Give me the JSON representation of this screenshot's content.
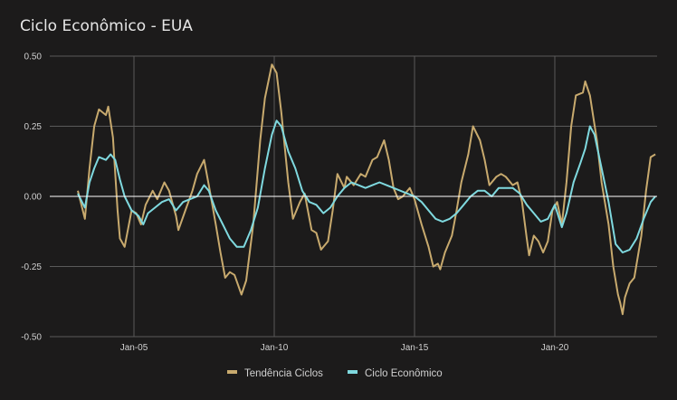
{
  "chart_data": {
    "type": "line",
    "title": "Ciclo Econômico - EUA",
    "xlabel": "",
    "ylabel": "",
    "ylim": [
      -0.5,
      0.5
    ],
    "yticks": [
      "0.50",
      "0.25",
      "0.00",
      "-0.25",
      "-0.50"
    ],
    "ytick_values": [
      0.5,
      0.25,
      0,
      -0.25,
      -0.5
    ],
    "xticks": [
      "Jan-05",
      "Jan-10",
      "Jan-15",
      "Jan-20"
    ],
    "xtick_values": [
      "2005-01",
      "2010-01",
      "2015-01",
      "2020-01"
    ],
    "xlim": [
      "2001-01",
      "2023-08"
    ],
    "grid": true,
    "legend_position": "bottom",
    "series": [
      {
        "name": "Tendência Ciclos",
        "color": "#c8aa6e",
        "points": [
          [
            "2003-01",
            0.02
          ],
          [
            "2003-04",
            -0.08
          ],
          [
            "2003-06",
            0.1
          ],
          [
            "2003-08",
            0.25
          ],
          [
            "2003-10",
            0.31
          ],
          [
            "2004-01",
            0.29
          ],
          [
            "2004-02",
            0.32
          ],
          [
            "2004-04",
            0.21
          ],
          [
            "2004-06",
            -0.05
          ],
          [
            "2004-07",
            -0.15
          ],
          [
            "2004-09",
            -0.18
          ],
          [
            "2004-12",
            -0.05
          ],
          [
            "2005-02",
            -0.06
          ],
          [
            "2005-04",
            -0.1
          ],
          [
            "2005-06",
            -0.03
          ],
          [
            "2005-09",
            0.02
          ],
          [
            "2005-11",
            -0.01
          ],
          [
            "2006-02",
            0.05
          ],
          [
            "2006-04",
            0.02
          ],
          [
            "2006-07",
            -0.07
          ],
          [
            "2006-08",
            -0.12
          ],
          [
            "2006-11",
            -0.05
          ],
          [
            "2007-02",
            0.02
          ],
          [
            "2007-04",
            0.08
          ],
          [
            "2007-07",
            0.13
          ],
          [
            "2007-09",
            0.04
          ],
          [
            "2007-12",
            -0.1
          ],
          [
            "2008-02",
            -0.2
          ],
          [
            "2008-04",
            -0.29
          ],
          [
            "2008-06",
            -0.27
          ],
          [
            "2008-08",
            -0.28
          ],
          [
            "2008-11",
            -0.35
          ],
          [
            "2009-01",
            -0.3
          ],
          [
            "2009-04",
            -0.1
          ],
          [
            "2009-07",
            0.2
          ],
          [
            "2009-09",
            0.35
          ],
          [
            "2009-12",
            0.47
          ],
          [
            "2010-02",
            0.44
          ],
          [
            "2010-04",
            0.3
          ],
          [
            "2010-07",
            0.05
          ],
          [
            "2010-09",
            -0.08
          ],
          [
            "2010-12",
            -0.02
          ],
          [
            "2011-02",
            0.01
          ],
          [
            "2011-05",
            -0.12
          ],
          [
            "2011-07",
            -0.13
          ],
          [
            "2011-09",
            -0.19
          ],
          [
            "2011-12",
            -0.16
          ],
          [
            "2012-02",
            -0.05
          ],
          [
            "2012-04",
            0.08
          ],
          [
            "2012-07",
            0.03
          ],
          [
            "2012-08",
            0.07
          ],
          [
            "2012-11",
            0.04
          ],
          [
            "2013-02",
            0.08
          ],
          [
            "2013-04",
            0.07
          ],
          [
            "2013-07",
            0.13
          ],
          [
            "2013-09",
            0.14
          ],
          [
            "2013-12",
            0.2
          ],
          [
            "2014-02",
            0.13
          ],
          [
            "2014-04",
            0.03
          ],
          [
            "2014-06",
            -0.01
          ],
          [
            "2014-08",
            0.0
          ],
          [
            "2014-11",
            0.03
          ],
          [
            "2015-01",
            -0.01
          ],
          [
            "2015-04",
            -0.1
          ],
          [
            "2015-07",
            -0.18
          ],
          [
            "2015-09",
            -0.25
          ],
          [
            "2015-11",
            -0.24
          ],
          [
            "2015-12",
            -0.26
          ],
          [
            "2016-02",
            -0.2
          ],
          [
            "2016-05",
            -0.14
          ],
          [
            "2016-07",
            -0.05
          ],
          [
            "2016-09",
            0.05
          ],
          [
            "2016-12",
            0.15
          ],
          [
            "2017-02",
            0.25
          ],
          [
            "2017-05",
            0.2
          ],
          [
            "2017-07",
            0.13
          ],
          [
            "2017-09",
            0.04
          ],
          [
            "2017-12",
            0.07
          ],
          [
            "2018-02",
            0.08
          ],
          [
            "2018-04",
            0.07
          ],
          [
            "2018-07",
            0.04
          ],
          [
            "2018-09",
            0.05
          ],
          [
            "2018-11",
            -0.02
          ],
          [
            "2019-01",
            -0.15
          ],
          [
            "2019-02",
            -0.21
          ],
          [
            "2019-04",
            -0.14
          ],
          [
            "2019-06",
            -0.16
          ],
          [
            "2019-08",
            -0.2
          ],
          [
            "2019-10",
            -0.16
          ],
          [
            "2019-12",
            -0.05
          ],
          [
            "2020-02",
            -0.02
          ],
          [
            "2020-04",
            -0.1
          ],
          [
            "2020-06",
            0.05
          ],
          [
            "2020-08",
            0.25
          ],
          [
            "2020-10",
            0.36
          ],
          [
            "2021-01",
            0.37
          ],
          [
            "2021-02",
            0.41
          ],
          [
            "2021-04",
            0.36
          ],
          [
            "2021-07",
            0.2
          ],
          [
            "2021-09",
            0.05
          ],
          [
            "2021-12",
            -0.1
          ],
          [
            "2022-02",
            -0.25
          ],
          [
            "2022-04",
            -0.35
          ],
          [
            "2022-05",
            -0.38
          ],
          [
            "2022-06",
            -0.42
          ],
          [
            "2022-07",
            -0.36
          ],
          [
            "2022-09",
            -0.31
          ],
          [
            "2022-11",
            -0.29
          ],
          [
            "2023-02",
            -0.14
          ],
          [
            "2023-04",
            0.02
          ],
          [
            "2023-06",
            0.14
          ],
          [
            "2023-08",
            0.15
          ]
        ]
      },
      {
        "name": "Ciclo Econômico",
        "color": "#7fd9df",
        "points": [
          [
            "2003-01",
            0.01
          ],
          [
            "2003-04",
            -0.04
          ],
          [
            "2003-06",
            0.05
          ],
          [
            "2003-08",
            0.1
          ],
          [
            "2003-10",
            0.14
          ],
          [
            "2004-01",
            0.13
          ],
          [
            "2004-03",
            0.15
          ],
          [
            "2004-05",
            0.13
          ],
          [
            "2004-07",
            0.06
          ],
          [
            "2004-09",
            0.0
          ],
          [
            "2004-12",
            -0.05
          ],
          [
            "2005-03",
            -0.07
          ],
          [
            "2005-05",
            -0.1
          ],
          [
            "2005-07",
            -0.06
          ],
          [
            "2005-10",
            -0.04
          ],
          [
            "2006-01",
            -0.02
          ],
          [
            "2006-04",
            -0.01
          ],
          [
            "2006-07",
            -0.05
          ],
          [
            "2006-10",
            -0.02
          ],
          [
            "2007-01",
            -0.01
          ],
          [
            "2007-04",
            0.0
          ],
          [
            "2007-07",
            0.04
          ],
          [
            "2007-09",
            0.02
          ],
          [
            "2007-12",
            -0.05
          ],
          [
            "2008-03",
            -0.1
          ],
          [
            "2008-06",
            -0.15
          ],
          [
            "2008-09",
            -0.18
          ],
          [
            "2008-12",
            -0.18
          ],
          [
            "2009-03",
            -0.12
          ],
          [
            "2009-06",
            -0.04
          ],
          [
            "2009-09",
            0.1
          ],
          [
            "2009-12",
            0.22
          ],
          [
            "2010-02",
            0.27
          ],
          [
            "2010-04",
            0.25
          ],
          [
            "2010-07",
            0.16
          ],
          [
            "2010-10",
            0.1
          ],
          [
            "2011-01",
            0.02
          ],
          [
            "2011-04",
            -0.02
          ],
          [
            "2011-07",
            -0.03
          ],
          [
            "2011-10",
            -0.06
          ],
          [
            "2012-01",
            -0.04
          ],
          [
            "2012-04",
            0.0
          ],
          [
            "2012-07",
            0.03
          ],
          [
            "2012-10",
            0.05
          ],
          [
            "2013-01",
            0.04
          ],
          [
            "2013-04",
            0.03
          ],
          [
            "2013-07",
            0.04
          ],
          [
            "2013-10",
            0.05
          ],
          [
            "2014-01",
            0.04
          ],
          [
            "2014-04",
            0.03
          ],
          [
            "2014-07",
            0.02
          ],
          [
            "2014-10",
            0.01
          ],
          [
            "2015-01",
            0.0
          ],
          [
            "2015-04",
            -0.02
          ],
          [
            "2015-07",
            -0.05
          ],
          [
            "2015-10",
            -0.08
          ],
          [
            "2016-01",
            -0.09
          ],
          [
            "2016-04",
            -0.08
          ],
          [
            "2016-07",
            -0.06
          ],
          [
            "2016-10",
            -0.03
          ],
          [
            "2017-01",
            0.0
          ],
          [
            "2017-04",
            0.02
          ],
          [
            "2017-07",
            0.02
          ],
          [
            "2017-10",
            0.0
          ],
          [
            "2018-01",
            0.03
          ],
          [
            "2018-04",
            0.03
          ],
          [
            "2018-07",
            0.03
          ],
          [
            "2018-10",
            0.01
          ],
          [
            "2019-01",
            -0.03
          ],
          [
            "2019-04",
            -0.06
          ],
          [
            "2019-07",
            -0.09
          ],
          [
            "2019-10",
            -0.08
          ],
          [
            "2020-01",
            -0.03
          ],
          [
            "2020-04",
            -0.11
          ],
          [
            "2020-06",
            -0.06
          ],
          [
            "2020-09",
            0.05
          ],
          [
            "2020-12",
            0.12
          ],
          [
            "2021-02",
            0.17
          ],
          [
            "2021-04",
            0.25
          ],
          [
            "2021-06",
            0.22
          ],
          [
            "2021-09",
            0.1
          ],
          [
            "2021-12",
            -0.02
          ],
          [
            "2022-03",
            -0.17
          ],
          [
            "2022-06",
            -0.2
          ],
          [
            "2022-09",
            -0.19
          ],
          [
            "2022-12",
            -0.15
          ],
          [
            "2023-03",
            -0.08
          ],
          [
            "2023-06",
            -0.02
          ],
          [
            "2023-08",
            0.0
          ]
        ]
      }
    ]
  },
  "colors": {
    "background": "#1c1b1b",
    "grid": "#5a5a5a",
    "zero_line": "#ffffff"
  }
}
